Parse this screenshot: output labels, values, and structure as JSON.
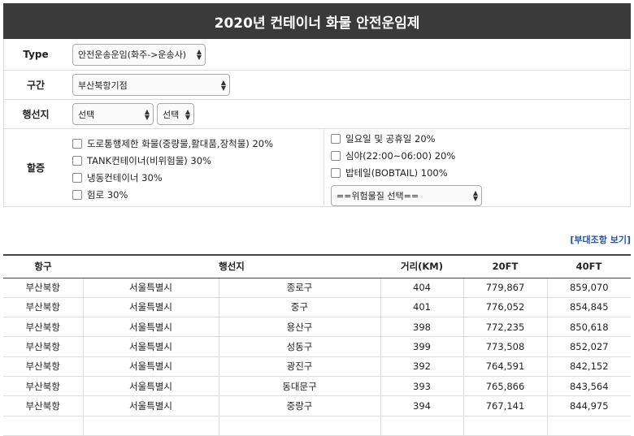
{
  "title": "2020년 컨테이너 화물 안전운임제",
  "form": {
    "type_label": "Type",
    "type_value": "안전운송운임(화주->운송사)",
    "section_label": "구간",
    "section_value": "부산북항기점",
    "dest_label": "행선지",
    "dest_value1": "선택",
    "dest_value2": "선택",
    "surcharge_label": "할증",
    "left_options": [
      "도로통행제한 화물(중량물,활대품,장척물) 20%",
      "TANK컨테이너(비위험물) 30%",
      "냉동컨테이너 30%",
      "험로 30%"
    ],
    "right_options": [
      "일요일 및 공휴일 20%",
      "심야(22:00~06:00) 20%",
      "밥테일(BOBTAIL) 100%"
    ],
    "hazard_select": "==위험물질 선택=="
  },
  "link_text": "[부대조항 보기]",
  "table": {
    "headers": [
      "항구",
      "행선지",
      "거리(KM)",
      "20FT",
      "40FT"
    ],
    "rows": [
      [
        "부산북항",
        "서울특별시",
        "종로구",
        "404",
        "779,867",
        "859,070"
      ],
      [
        "부산북항",
        "서울특별시",
        "중구",
        "401",
        "776,052",
        "854,845"
      ],
      [
        "부산북항",
        "서울특별시",
        "용산구",
        "398",
        "772,235",
        "850,618"
      ],
      [
        "부산북항",
        "서울특별시",
        "성동구",
        "399",
        "773,508",
        "852,027"
      ],
      [
        "부산북항",
        "서울특별시",
        "광진구",
        "392",
        "764,591",
        "842,152"
      ],
      [
        "부산북항",
        "서울특별시",
        "동대문구",
        "393",
        "765,866",
        "843,564"
      ],
      [
        "부산북항",
        "서울특별시",
        "중랑구",
        "394",
        "767,141",
        "844,975"
      ],
      [
        "",
        "",
        "",
        "",
        "",
        ""
      ]
    ]
  }
}
